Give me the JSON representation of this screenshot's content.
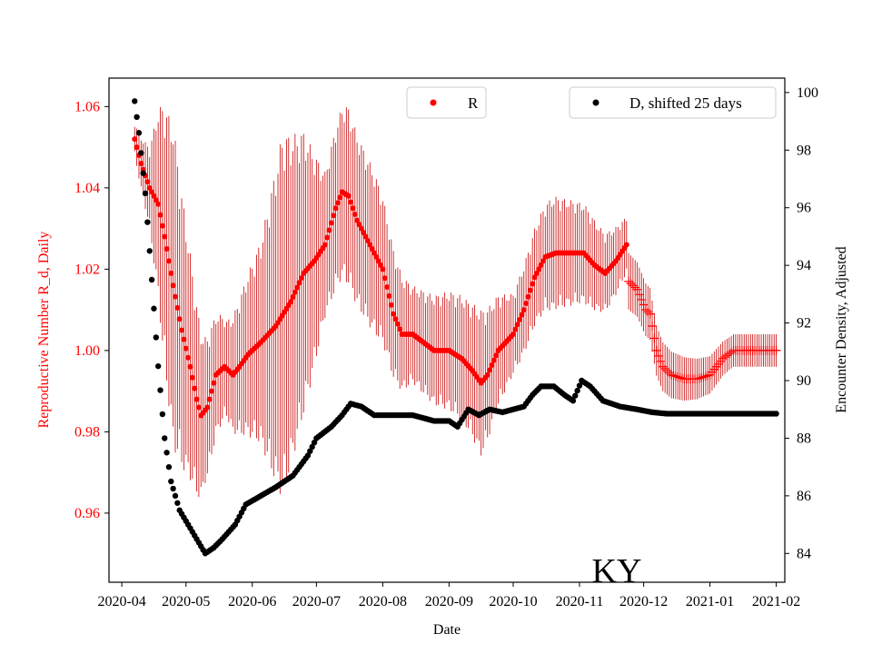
{
  "chart_data": {
    "type": "scatter",
    "state": "KY",
    "xlabel": "Date",
    "ylabel_left": "Reproductive Number R_d, Daily",
    "ylabel_right": "Encounter Density, Adjusted",
    "x_range": [
      "2020-03-26",
      "2021-02-05"
    ],
    "ylim_left": [
      0.943,
      1.067
    ],
    "ylim_right": [
      83.0,
      100.5
    ],
    "x_ticks": [
      "2020-04",
      "2020-05",
      "2020-06",
      "2020-07",
      "2020-08",
      "2020-09",
      "2020-10",
      "2020-11",
      "2020-12",
      "2021-01",
      "2021-02"
    ],
    "y_ticks_left": [
      "0.96",
      "0.98",
      "1.00",
      "1.02",
      "1.04",
      "1.06"
    ],
    "y_ticks_right": [
      "84",
      "86",
      "88",
      "90",
      "92",
      "94",
      "96",
      "98",
      "100"
    ],
    "legend": {
      "r_label": "R",
      "d_label": "D, shifted 25 days"
    },
    "colors": {
      "r_series": "#ff0000",
      "errorbar": "#c80000",
      "d_series": "#000000",
      "left_axis": "#ff0000"
    },
    "r_keyframes": [
      [
        "2020-04-07",
        1.052
      ],
      [
        "2020-04-10",
        1.046
      ],
      [
        "2020-04-14",
        1.04
      ],
      [
        "2020-04-18",
        1.036
      ],
      [
        "2020-04-21",
        1.028
      ],
      [
        "2020-04-25",
        1.016
      ],
      [
        "2020-04-29",
        1.005
      ],
      [
        "2020-05-03",
        0.996
      ],
      [
        "2020-05-06",
        0.988
      ],
      [
        "2020-05-08",
        0.984
      ],
      [
        "2020-05-11",
        0.986
      ],
      [
        "2020-05-15",
        0.994
      ],
      [
        "2020-05-19",
        0.996
      ],
      [
        "2020-05-23",
        0.994
      ],
      [
        "2020-05-26",
        0.996
      ],
      [
        "2020-05-30",
        0.999
      ],
      [
        "2020-06-05",
        1.002
      ],
      [
        "2020-06-12",
        1.006
      ],
      [
        "2020-06-19",
        1.012
      ],
      [
        "2020-06-25",
        1.019
      ],
      [
        "2020-06-30",
        1.022
      ],
      [
        "2020-07-05",
        1.026
      ],
      [
        "2020-07-10",
        1.035
      ],
      [
        "2020-07-13",
        1.039
      ],
      [
        "2020-07-16",
        1.038
      ],
      [
        "2020-07-20",
        1.032
      ],
      [
        "2020-07-25",
        1.027
      ],
      [
        "2020-08-01",
        1.02
      ],
      [
        "2020-08-06",
        1.009
      ],
      [
        "2020-08-10",
        1.004
      ],
      [
        "2020-08-15",
        1.004
      ],
      [
        "2020-08-20",
        1.002
      ],
      [
        "2020-08-25",
        1.0
      ],
      [
        "2020-09-01",
        1.0
      ],
      [
        "2020-09-07",
        0.998
      ],
      [
        "2020-09-12",
        0.995
      ],
      [
        "2020-09-16",
        0.992
      ],
      [
        "2020-09-19",
        0.994
      ],
      [
        "2020-09-24",
        1.0
      ],
      [
        "2020-10-01",
        1.004
      ],
      [
        "2020-10-06",
        1.01
      ],
      [
        "2020-10-11",
        1.018
      ],
      [
        "2020-10-16",
        1.023
      ],
      [
        "2020-10-21",
        1.024
      ],
      [
        "2020-10-28",
        1.024
      ],
      [
        "2020-11-03",
        1.024
      ],
      [
        "2020-11-08",
        1.021
      ],
      [
        "2020-11-13",
        1.019
      ],
      [
        "2020-11-18",
        1.022
      ],
      [
        "2020-11-23",
        1.026
      ]
    ],
    "r_plus_keyframes": [
      [
        "2020-11-24",
        1.017
      ],
      [
        "2020-11-28",
        1.015
      ],
      [
        "2020-12-02",
        1.01
      ],
      [
        "2020-12-04",
        1.009
      ],
      [
        "2020-12-07",
        1.0
      ],
      [
        "2020-12-10",
        0.996
      ],
      [
        "2020-12-14",
        0.994
      ],
      [
        "2020-12-20",
        0.993
      ],
      [
        "2020-12-26",
        0.993
      ],
      [
        "2021-01-01",
        0.994
      ],
      [
        "2021-01-07",
        0.998
      ],
      [
        "2021-01-12",
        1.0
      ],
      [
        "2021-01-20",
        1.0
      ],
      [
        "2021-02-01",
        1.0
      ]
    ],
    "d_keyframes": [
      [
        "2020-04-07",
        99.7
      ],
      [
        "2020-04-09",
        98.6
      ],
      [
        "2020-04-12",
        96.5
      ],
      [
        "2020-04-15",
        93.5
      ],
      [
        "2020-04-18",
        90.5
      ],
      [
        "2020-04-21",
        88.0
      ],
      [
        "2020-04-24",
        86.5
      ],
      [
        "2020-04-28",
        85.5
      ],
      [
        "2020-05-02",
        85.0
      ],
      [
        "2020-05-06",
        84.5
      ],
      [
        "2020-05-10",
        84.0
      ],
      [
        "2020-05-14",
        84.2
      ],
      [
        "2020-05-18",
        84.5
      ],
      [
        "2020-05-24",
        85.0
      ],
      [
        "2020-05-29",
        85.7
      ],
      [
        "2020-06-05",
        86.0
      ],
      [
        "2020-06-12",
        86.3
      ],
      [
        "2020-06-20",
        86.7
      ],
      [
        "2020-06-27",
        87.4
      ],
      [
        "2020-07-01",
        88.0
      ],
      [
        "2020-07-08",
        88.4
      ],
      [
        "2020-07-13",
        88.8
      ],
      [
        "2020-07-17",
        89.2
      ],
      [
        "2020-07-22",
        89.1
      ],
      [
        "2020-07-28",
        88.8
      ],
      [
        "2020-08-05",
        88.8
      ],
      [
        "2020-08-15",
        88.8
      ],
      [
        "2020-08-25",
        88.6
      ],
      [
        "2020-09-01",
        88.6
      ],
      [
        "2020-09-05",
        88.4
      ],
      [
        "2020-09-10",
        89.0
      ],
      [
        "2020-09-15",
        88.8
      ],
      [
        "2020-09-20",
        89.0
      ],
      [
        "2020-09-26",
        88.9
      ],
      [
        "2020-10-01",
        89.0
      ],
      [
        "2020-10-06",
        89.1
      ],
      [
        "2020-10-10",
        89.5
      ],
      [
        "2020-10-14",
        89.8
      ],
      [
        "2020-10-20",
        89.8
      ],
      [
        "2020-10-25",
        89.5
      ],
      [
        "2020-10-29",
        89.3
      ],
      [
        "2020-11-02",
        90.0
      ],
      [
        "2020-11-06",
        89.8
      ],
      [
        "2020-11-12",
        89.3
      ],
      [
        "2020-11-20",
        89.1
      ],
      [
        "2020-11-28",
        89.0
      ],
      [
        "2020-12-05",
        88.9
      ],
      [
        "2020-12-12",
        88.85
      ],
      [
        "2021-02-01",
        88.85
      ]
    ],
    "errorbar_half_width": [
      [
        "2020-04-07",
        0.004
      ],
      [
        "2020-04-14",
        0.01
      ],
      [
        "2020-04-20",
        0.03
      ],
      [
        "2020-04-25",
        0.04
      ],
      [
        "2020-05-03",
        0.028
      ],
      [
        "2020-05-10",
        0.018
      ],
      [
        "2020-05-20",
        0.012
      ],
      [
        "2020-06-05",
        0.025
      ],
      [
        "2020-06-15",
        0.045
      ],
      [
        "2020-06-25",
        0.035
      ],
      [
        "2020-07-05",
        0.018
      ],
      [
        "2020-07-15",
        0.022
      ],
      [
        "2020-07-28",
        0.02
      ],
      [
        "2020-08-15",
        0.012
      ],
      [
        "2020-09-10",
        0.016
      ],
      [
        "2020-09-16",
        0.018
      ],
      [
        "2020-10-01",
        0.01
      ],
      [
        "2020-10-20",
        0.014
      ],
      [
        "2020-11-05",
        0.012
      ],
      [
        "2020-11-23",
        0.007
      ],
      [
        "2020-12-10",
        0.006
      ],
      [
        "2021-01-10",
        0.004
      ],
      [
        "2021-02-01",
        0.004
      ]
    ]
  }
}
